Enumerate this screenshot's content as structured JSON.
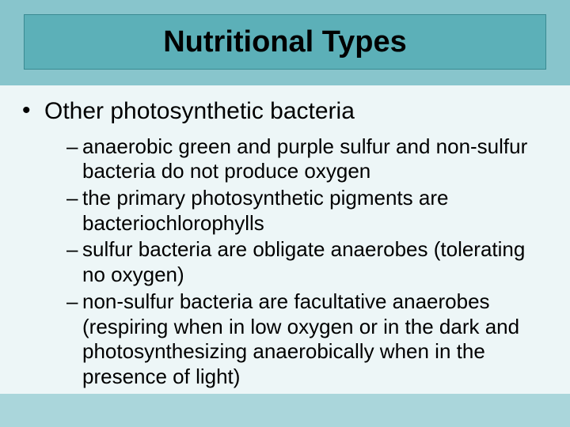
{
  "slide": {
    "title": "Nutritional Types",
    "background_color": "#88c5cc",
    "title_bar_color": "#5cb0b8",
    "title_border_color": "#3a8a92",
    "content_bg_color": "#edf6f7",
    "footer_bar_color": "#aad6db",
    "title_fontsize": 38,
    "l1_fontsize": 30,
    "l2_fontsize": 26,
    "text_color": "#000000",
    "bullets": [
      {
        "text": "Other photosynthetic bacteria",
        "sub": [
          "anaerobic green and purple sulfur and non-sulfur bacteria do not produce oxygen",
          "the primary photosynthetic pigments are bacteriochlorophylls",
          "sulfur bacteria are obligate anaerobes (tolerating no oxygen)",
          "non-sulfur bacteria are facultative anaerobes (respiring when in low oxygen or in the dark and photosynthesizing anaerobically when in the presence of light)"
        ]
      }
    ]
  }
}
